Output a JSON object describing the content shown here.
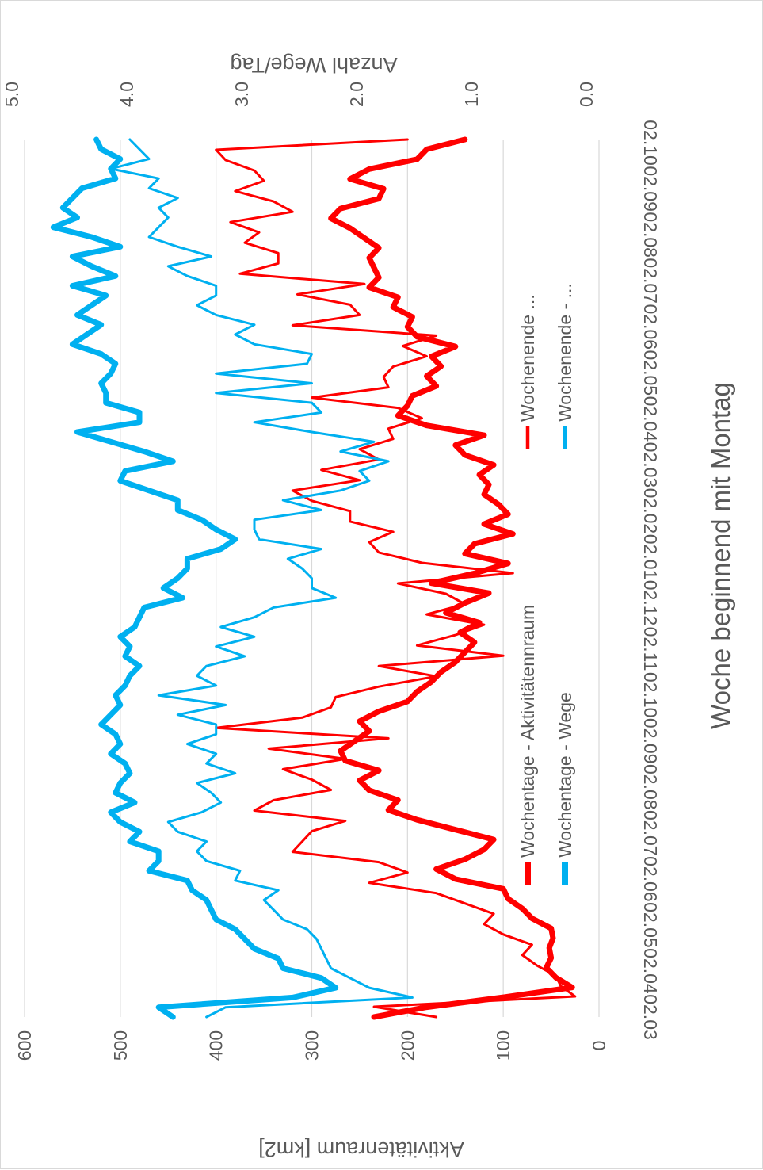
{
  "chart_data": {
    "type": "line",
    "orientation": "rotated-90-clockwise",
    "x_title": "Woche beginnend mit Montag",
    "y_left_title": "Aktivitätenraum [km2]",
    "y_right_title": "Anzahl Wege/Tag",
    "x_tick_labels": [
      "02.03",
      "02.04",
      "02.05",
      "02.06",
      "02.07",
      "02.08",
      "02.09",
      "02.10",
      "02.11",
      "02.12",
      "02.01",
      "02.02",
      "02.03",
      "02.04",
      "02.05",
      "02.06",
      "02.07",
      "02.08",
      "02.09",
      "02.10"
    ],
    "y_left_ticks": [
      "0",
      "100",
      "200",
      "300",
      "400",
      "500",
      "600"
    ],
    "y_right_ticks": [
      "0.0",
      "1.0",
      "2.0",
      "3.0",
      "4.0",
      "5.0"
    ],
    "y_left_range": [
      0,
      600
    ],
    "y_right_range": [
      0,
      5
    ],
    "x_range": [
      0,
      82
    ],
    "x_tick_step": 4.3,
    "grid": true,
    "legend": [
      {
        "label": "Wochentage - Aktivitätennraum",
        "color": "#FF0000",
        "width": 6
      },
      {
        "label": "Wochentage - Wege",
        "color": "#00B0F0",
        "width": 6
      },
      {
        "label": "Wochenende ...",
        "color": "#FF0000",
        "width": 2.5
      },
      {
        "label": "Wochenende - ...",
        "color": "#00B0F0",
        "width": 2.5
      }
    ],
    "series": [
      {
        "name": "Wochentage - Aktivitätennraum",
        "axis": "left",
        "color": "#FF0000",
        "width": 7,
        "values": [
          235,
          180,
          100,
          28,
          45,
          55,
          50,
          52,
          48,
          50,
          70,
          80,
          95,
          100,
          150,
          170,
          140,
          120,
          110,
          150,
          190,
          220,
          210,
          240,
          250,
          230,
          265,
          270,
          255,
          240,
          250,
          230,
          200,
          190,
          175,
          165,
          150,
          140,
          130,
          145,
          125,
          160,
          140,
          115,
          175,
          130,
          95,
          140,
          130,
          90,
          120,
          95,
          105,
          120,
          115,
          125,
          110,
          140,
          150,
          120,
          180,
          210,
          200,
          195,
          170,
          180,
          165,
          175,
          150,
          190,
          200,
          195,
          215,
          210,
          240,
          230,
          235,
          240,
          230,
          245,
          260,
          280,
          270,
          230,
          225,
          260,
          240,
          190,
          180,
          140
        ]
      },
      {
        "name": "Wochentage - Wege",
        "axis": "left",
        "color": "#00B0F0",
        "width": 7,
        "values": [
          445,
          460,
          320,
          275,
          290,
          330,
          335,
          360,
          370,
          380,
          400,
          405,
          410,
          425,
          430,
          470,
          460,
          460,
          490,
          480,
          500,
          510,
          485,
          505,
          500,
          490,
          495,
          510,
          500,
          505,
          520,
          510,
          500,
          505,
          495,
          490,
          480,
          495,
          490,
          500,
          485,
          480,
          475,
          435,
          455,
          440,
          430,
          430,
          395,
          380,
          400,
          415,
          440,
          440,
          470,
          500,
          495,
          445,
          475,
          510,
          545,
          480,
          480,
          515,
          515,
          520,
          510,
          505,
          520,
          550,
          535,
          520,
          545,
          530,
          515,
          550,
          505,
          530,
          550,
          500,
          530,
          570,
          545,
          560,
          550,
          540,
          505,
          510,
          500,
          520,
          525
        ]
      },
      {
        "name": "Wochenende - Aktivitätennraum",
        "axis": "left",
        "color": "#FF0000",
        "width": 3,
        "values": [
          170,
          235,
          25,
          40,
          45,
          65,
          80,
          70,
          100,
          120,
          110,
          140,
          170,
          240,
          200,
          230,
          320,
          310,
          300,
          265,
          360,
          340,
          280,
          300,
          330,
          265,
          345,
          220,
          400,
          310,
          280,
          275,
          230,
          170,
          230,
          100,
          190,
          150,
          120,
          180,
          140,
          160,
          210,
          90,
          185,
          230,
          240,
          215,
          260,
          260,
          300,
          320,
          250,
          290,
          230,
          250,
          215,
          220,
          185,
          210,
          300,
          220,
          225,
          215,
          180,
          205,
          170,
          320,
          250,
          260,
          315,
          245,
          375,
          335,
          335,
          370,
          355,
          385,
          320,
          340,
          380,
          350,
          360,
          390,
          400,
          200
        ]
      },
      {
        "name": "Wochenende - Wege",
        "axis": "left",
        "color": "#00B0F0",
        "width": 3,
        "values": [
          410,
          390,
          195,
          240,
          260,
          280,
          285,
          290,
          295,
          305,
          330,
          340,
          350,
          335,
          380,
          375,
          410,
          420,
          410,
          440,
          450,
          415,
          395,
          405,
          420,
          380,
          410,
          400,
          430,
          400,
          400,
          440,
          390,
          460,
          400,
          420,
          410,
          370,
          400,
          360,
          395,
          360,
          340,
          275,
          300,
          300,
          310,
          325,
          290,
          355,
          360,
          360,
          290,
          330,
          270,
          240,
          250,
          220,
          270,
          235,
          300,
          360,
          290,
          300,
          400,
          300,
          400,
          305,
          300,
          360,
          380,
          360,
          400,
          420,
          400,
          400,
          430,
          450,
          405,
          440,
          470,
          460,
          450,
          460,
          440,
          470,
          460,
          510,
          470,
          480,
          490
        ]
      }
    ]
  }
}
